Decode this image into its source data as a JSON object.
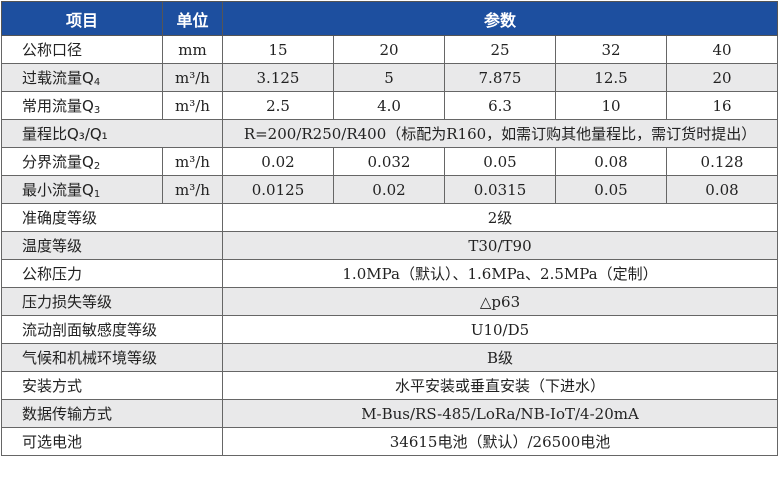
{
  "header": {
    "item": "项目",
    "unit": "单位",
    "params": "参数"
  },
  "rows": [
    {
      "name": "公称口径",
      "sub": "",
      "unit": "mm",
      "values": [
        "15",
        "20",
        "25",
        "32",
        "40"
      ]
    },
    {
      "name": "过载流量Q",
      "sub": "4",
      "unit": "m³/h",
      "values": [
        "3.125",
        "5",
        "7.875",
        "12.5",
        "20"
      ]
    },
    {
      "name": "常用流量Q",
      "sub": "3",
      "unit": "m³/h",
      "values": [
        "2.5",
        "4.0",
        "6.3",
        "10",
        "16"
      ]
    }
  ],
  "range_ratio": {
    "name": "量程比Q₃/Q₁",
    "value": "R=200/R250/R400（标配为R160，如需订购其他量程比，需订货时提出）"
  },
  "rows2": [
    {
      "name": "分界流量Q",
      "sub": "2",
      "unit": "m³/h",
      "values": [
        "0.02",
        "0.032",
        "0.05",
        "0.08",
        "0.128"
      ]
    },
    {
      "name": "最小流量Q",
      "sub": "1",
      "unit": "m³/h",
      "values": [
        "0.0125",
        "0.02",
        "0.0315",
        "0.05",
        "0.08"
      ]
    }
  ],
  "spans": [
    {
      "name": "准确度等级",
      "value": "2级"
    },
    {
      "name": "温度等级",
      "value": "T30/T90"
    },
    {
      "name": "公称压力",
      "value": "1.0MPa（默认）、1.6MPa、2.5MPa（定制）"
    },
    {
      "name": "压力损失等级",
      "value": "△p63"
    },
    {
      "name": "流动剖面敏感度等级",
      "value": "U10/D5"
    },
    {
      "name": "气候和机械环境等级",
      "value": "B级"
    },
    {
      "name": "安装方式",
      "value": "水平安装或垂直安装（下进水）"
    },
    {
      "name": "数据传输方式",
      "value": "M-Bus/RS-485/LoRa/NB-IoT/4-20mA"
    },
    {
      "name": "可选电池",
      "value": "34615电池（默认）/26500电池"
    }
  ],
  "colors": {
    "header": "#1d4f9f",
    "alt_row": "#e9e9ea"
  }
}
